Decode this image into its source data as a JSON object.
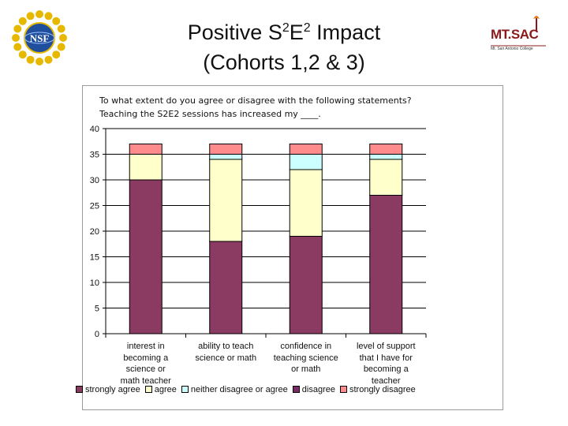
{
  "slide": {
    "title_line1_pre": "Positive S",
    "title_sup1": "2",
    "title_mid": "E",
    "title_sup2": "2",
    "title_line1_post": " Impact",
    "title_line2": "(Cohorts 1,2 & 3)",
    "left_logo_text": "NSF",
    "right_logo_text": "MT.SAC",
    "right_logo_subtext": "Mt. San Antonio College"
  },
  "chart_data": {
    "type": "bar",
    "stacked": true,
    "title": "To what extent do you agree or disagree with the following statements?",
    "subtitle": "Teaching the S2E2 sessions has increased my ____.",
    "xlabel": "",
    "ylabel": "",
    "ylim": [
      0,
      40
    ],
    "yticks": [
      0,
      5,
      10,
      15,
      20,
      25,
      30,
      35,
      40
    ],
    "grid": true,
    "legend_position": "bottom",
    "categories": [
      [
        "interest in",
        "becoming a",
        "science or",
        "math teacher"
      ],
      [
        "ability to teach",
        "science or math"
      ],
      [
        "confidence in",
        "teaching science",
        "or math"
      ],
      [
        "level of support",
        "that I have for",
        "becoming a",
        "teacher"
      ]
    ],
    "series": [
      {
        "name": "strongly agree",
        "color": "#8b3a62",
        "values": [
          30,
          18,
          19,
          27
        ]
      },
      {
        "name": "agree",
        "color": "#ffffcc",
        "values": [
          5,
          16,
          13,
          7
        ]
      },
      {
        "name": "neither disagree or agree",
        "color": "#ccffff",
        "values": [
          0,
          1,
          3,
          1
        ]
      },
      {
        "name": "disagree",
        "color": "#7a2a66",
        "values": [
          0,
          0,
          0,
          0
        ]
      },
      {
        "name": "strongly disagree",
        "color": "#ff8c8c",
        "values": [
          2,
          2,
          2,
          2
        ]
      }
    ]
  }
}
